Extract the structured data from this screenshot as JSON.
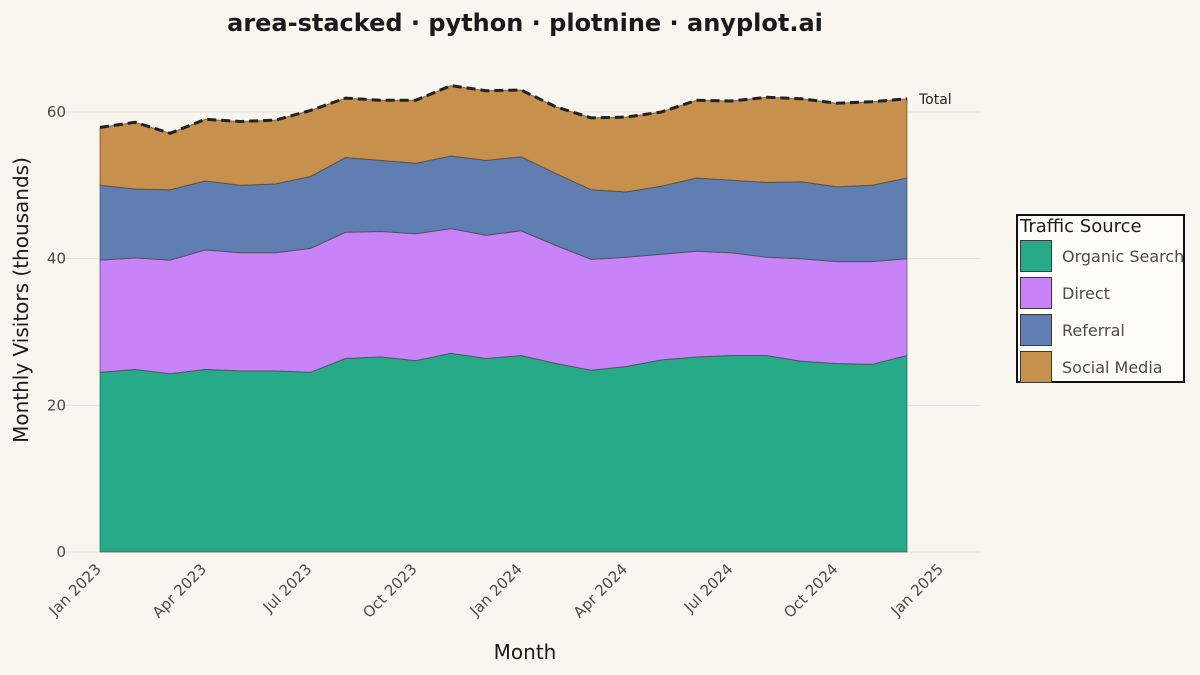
{
  "chart_data": {
    "type": "area",
    "stacked": true,
    "title": "area-stacked · python · plotnine · anyplot.ai",
    "xlabel": "Month",
    "ylabel": "Monthly Visitors (thousands)",
    "ylim": [
      0,
      65
    ],
    "yticks": [
      0,
      20,
      40,
      60
    ],
    "xticks": [
      "2023-01",
      "2023-04",
      "2023-07",
      "2023-10",
      "2024-01",
      "2024-04",
      "2024-07",
      "2024-10",
      "2025-01"
    ],
    "xtick_labels": [
      "Jan 2023",
      "Apr 2023",
      "Jul 2023",
      "Oct 2023",
      "Jan 2024",
      "Apr 2024",
      "Jul 2024",
      "Oct 2024",
      "Jan 2025"
    ],
    "x": [
      "2023-01",
      "2023-02",
      "2023-03",
      "2023-04",
      "2023-05",
      "2023-06",
      "2023-07",
      "2023-08",
      "2023-09",
      "2023-10",
      "2023-11",
      "2023-12",
      "2024-01",
      "2024-02",
      "2024-03",
      "2024-04",
      "2024-05",
      "2024-06",
      "2024-07",
      "2024-08",
      "2024-09",
      "2024-10",
      "2024-11",
      "2024-12"
    ],
    "series": [
      {
        "name": "Organic Search",
        "color": "#27AA88",
        "values": [
          24.5,
          24.9,
          24.3,
          24.9,
          24.7,
          24.7,
          24.5,
          26.4,
          26.6,
          26.1,
          27.1,
          26.4,
          26.8,
          25.7,
          24.8,
          25.3,
          26.2,
          26.6,
          26.8,
          26.8,
          26.0,
          25.7,
          25.6,
          26.8
        ]
      },
      {
        "name": "Direct",
        "color": "#C883F8",
        "values": [
          15.3,
          15.2,
          15.5,
          16.3,
          16.1,
          16.1,
          16.9,
          17.2,
          17.1,
          17.3,
          17.0,
          16.8,
          17.0,
          16.1,
          15.1,
          14.9,
          14.4,
          14.4,
          14.0,
          13.4,
          14.0,
          13.9,
          14.0,
          13.2
        ]
      },
      {
        "name": "Referral",
        "color": "#607EB2",
        "values": [
          10.2,
          9.4,
          9.6,
          9.4,
          9.2,
          9.4,
          9.8,
          10.2,
          9.7,
          9.6,
          9.9,
          10.2,
          10.1,
          9.8,
          9.5,
          8.9,
          9.3,
          10.0,
          9.9,
          10.2,
          10.5,
          10.2,
          10.4,
          11.0
        ]
      },
      {
        "name": "Social Media",
        "color": "#C7904C",
        "values": [
          7.9,
          9.1,
          7.7,
          8.4,
          8.7,
          8.7,
          9.0,
          8.1,
          8.2,
          8.6,
          9.6,
          9.5,
          9.1,
          9.1,
          9.8,
          10.2,
          10.1,
          10.6,
          10.8,
          11.6,
          11.3,
          11.4,
          11.4,
          10.8
        ]
      }
    ],
    "total_line": {
      "label": "Total",
      "style": "dashed"
    },
    "legend": {
      "title": "Traffic Source",
      "placement": "right"
    },
    "grid": true
  }
}
